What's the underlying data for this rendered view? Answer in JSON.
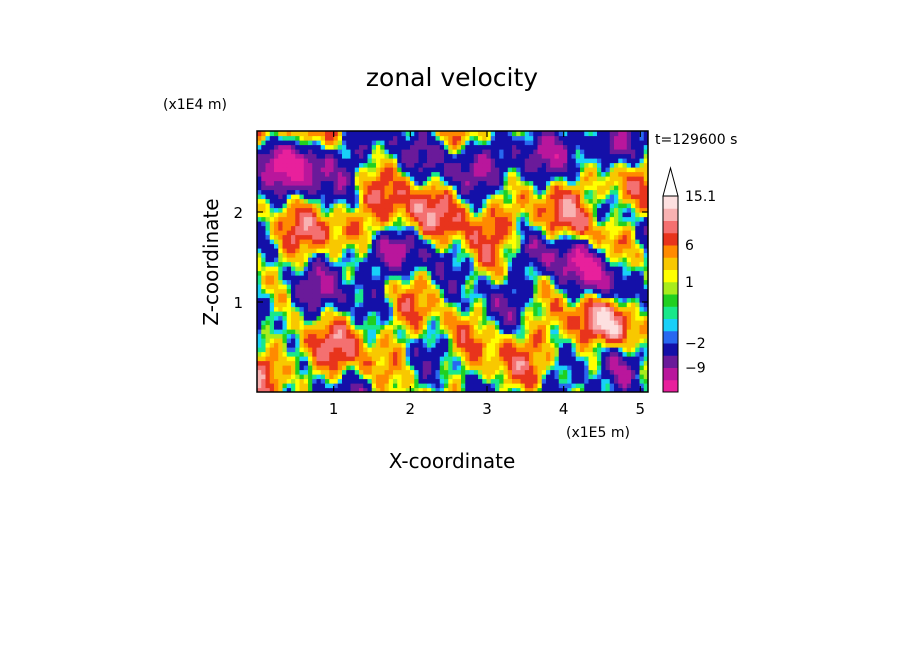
{
  "chart_data": {
    "type": "heatmap",
    "title": "zonal velocity",
    "xlabel": "X-coordinate",
    "ylabel": "Z-coordinate",
    "x_unit": "(x1E5 m)",
    "y_unit": "(x1E4 m)",
    "time_label": "t=129600 s",
    "xlim": [
      0,
      5.1
    ],
    "ylim": [
      0,
      2.9
    ],
    "x_ticks": [
      1,
      2,
      3,
      4,
      5
    ],
    "y_ticks": [
      1,
      2
    ],
    "colorbar": {
      "labels": [
        {
          "text": "15.1",
          "value": 15.1
        },
        {
          "text": "6",
          "value": 6
        },
        {
          "text": "1",
          "value": 1
        },
        {
          "text": "−2",
          "value": -2
        },
        {
          "text": "−9",
          "value": -9
        }
      ],
      "levels": [
        -18,
        -13.5,
        -9,
        -6,
        -2,
        -1.5,
        -0.75,
        0,
        0.5,
        1,
        2,
        4,
        6,
        9,
        12,
        15.1
      ],
      "colors": [
        "#e8209c",
        "#b9169c",
        "#6a1a9a",
        "#1410a8",
        "#2868f0",
        "#18d0f8",
        "#18e88a",
        "#20d020",
        "#a8ec1c",
        "#ffff00",
        "#f8c800",
        "#ff8a00",
        "#e8341c",
        "#f47070",
        "#f8b2b2",
        "#fde0e0"
      ],
      "extend": "max"
    }
  }
}
